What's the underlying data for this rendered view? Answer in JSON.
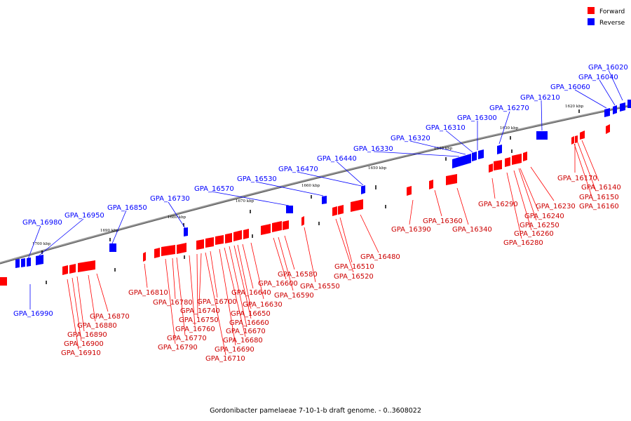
{
  "title": "Gordonibacter pamelaeae 7-10-1-b draft genome. - 0..3608022",
  "legend": [
    {
      "label": "Forward",
      "color": "#ff0000"
    },
    {
      "label": "Reverse",
      "color": "#0000ff"
    }
  ],
  "colors": {
    "forward": "#ff0000",
    "reverse": "#0000ff",
    "backbone": "#808080"
  },
  "ticks": [
    "1620 kbp",
    "1630 kbp",
    "1640 kbp",
    "1650 kbp",
    "1660 kbp",
    "1670 kbp",
    "1680 kbp",
    "1690 kbp",
    "1700 kbp"
  ],
  "reverse_genes": [
    "GPA_16020",
    "GPA_16040",
    "GPA_16060",
    "GPA_16210",
    "GPA_16270",
    "GPA_16300",
    "GPA_16310",
    "GPA_16320",
    "GPA_16330",
    "GPA_16440",
    "GPA_16470",
    "GPA_16530",
    "GPA_16570",
    "GPA_16730",
    "GPA_16850",
    "GPA_16950",
    "GPA_16980",
    "GPA_16990"
  ],
  "forward_genes": [
    "GPA_16140",
    "GPA_16150",
    "GPA_16160",
    "GPA_16170",
    "GPA_16230",
    "GPA_16240",
    "GPA_16250",
    "GPA_16260",
    "GPA_16280",
    "GPA_16290",
    "GPA_16340",
    "GPA_16360",
    "GPA_16390",
    "GPA_16480",
    "GPA_16510",
    "GPA_16520",
    "GPA_16550",
    "GPA_16580",
    "GPA_16590",
    "GPA_16600",
    "GPA_16630",
    "GPA_16640",
    "GPA_16650",
    "GPA_16660",
    "GPA_16670",
    "GPA_16680",
    "GPA_16690",
    "GPA_16700",
    "GPA_16710",
    "GPA_16740",
    "GPA_16750",
    "GPA_16760",
    "GPA_16770",
    "GPA_16780",
    "GPA_16790",
    "GPA_16810",
    "GPA_16870",
    "GPA_16880",
    "GPA_16890",
    "GPA_16900",
    "GPA_16910"
  ]
}
